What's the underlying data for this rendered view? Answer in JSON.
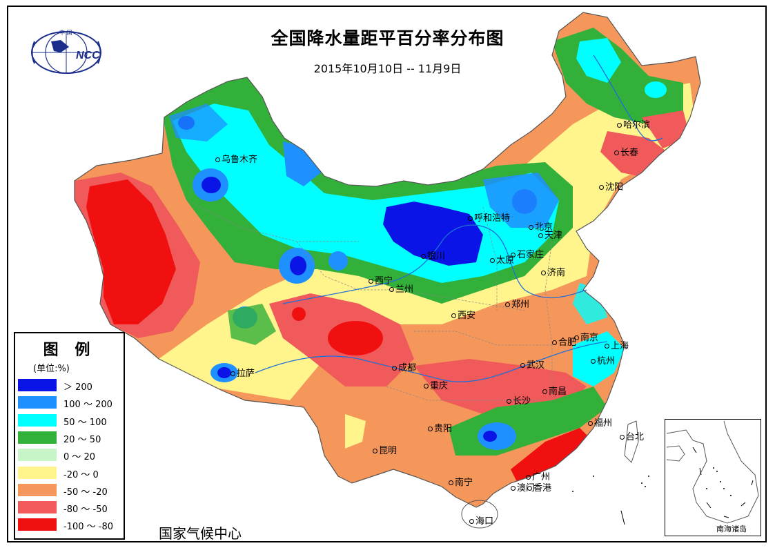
{
  "header": {
    "title": "全国降水量距平百分率分布图",
    "subtitle": "2015年10月10日 -- 11月9日"
  },
  "logo": {
    "icon": "ncc-globe-logo",
    "text": "NCC",
    "top_text": "中 国"
  },
  "legend": {
    "title": "图 例",
    "unit": "(单位:%)",
    "items": [
      {
        "label": "＞ 200",
        "color": "#0a14e6"
      },
      {
        "label": "100 ～ 200",
        "color": "#1e90ff"
      },
      {
        "label": "50 ～ 100",
        "color": "#00ffff"
      },
      {
        "label": "20 ～ 50",
        "color": "#33b03a"
      },
      {
        "label": "0 ～ 20",
        "color": "#c8f5c8"
      },
      {
        "label": "-20 ～ 0",
        "color": "#fff58c"
      },
      {
        "label": "-50 ～ -20",
        "color": "#f5965a"
      },
      {
        "label": "-80 ～ -50",
        "color": "#f05a5a"
      },
      {
        "label": "-100 ～ -80",
        "color": "#f01010"
      }
    ]
  },
  "organization": "国家气候中心",
  "inset": {
    "label": "南海诸岛"
  },
  "cities": [
    {
      "name": "乌鲁木齐"
    },
    {
      "name": "哈尔滨"
    },
    {
      "name": "长春"
    },
    {
      "name": "沈阳"
    },
    {
      "name": "呼和浩特"
    },
    {
      "name": "北京"
    },
    {
      "name": "天津"
    },
    {
      "name": "石家庄"
    },
    {
      "name": "太原"
    },
    {
      "name": "济南"
    },
    {
      "name": "银川"
    },
    {
      "name": "西宁"
    },
    {
      "name": "兰州"
    },
    {
      "name": "郑州"
    },
    {
      "name": "西安"
    },
    {
      "name": "合肥"
    },
    {
      "name": "南京"
    },
    {
      "name": "上海"
    },
    {
      "name": "杭州"
    },
    {
      "name": "成都"
    },
    {
      "name": "武汉"
    },
    {
      "name": "重庆"
    },
    {
      "name": "拉萨"
    },
    {
      "name": "长沙"
    },
    {
      "name": "南昌"
    },
    {
      "name": "贵阳"
    },
    {
      "name": "福州"
    },
    {
      "name": "台北"
    },
    {
      "name": "昆明"
    },
    {
      "name": "广州"
    },
    {
      "name": "南宁"
    },
    {
      "name": "澳门"
    },
    {
      "name": "香港"
    },
    {
      "name": "海口"
    }
  ]
}
